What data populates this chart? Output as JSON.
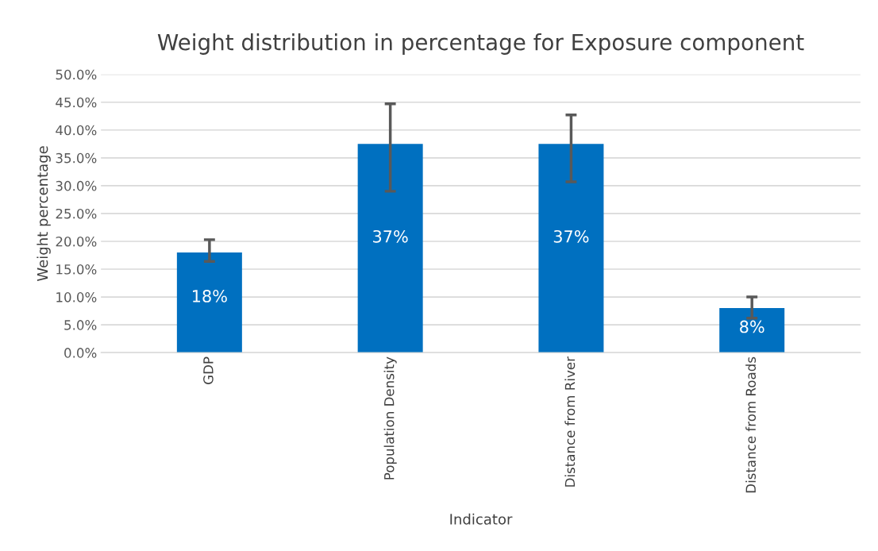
{
  "chart_data": {
    "type": "bar",
    "title": "Weight distribution in percentage for Exposure component",
    "xlabel": "Indicator",
    "ylabel": "Weight percentage",
    "categories": [
      "GDP",
      "Population Density",
      "Distance from River",
      "Distance from Roads"
    ],
    "values": [
      18,
      37.5,
      37.5,
      8
    ],
    "value_labels": [
      "18%",
      "37%",
      "37%",
      "8%"
    ],
    "errors": [
      [
        16.4,
        20.3
      ],
      [
        29.0,
        44.7
      ],
      [
        30.7,
        42.7
      ],
      [
        6.2,
        10.0
      ]
    ],
    "color": "#0070c0",
    "ylim": [
      0,
      50
    ],
    "yticks": [
      {
        "value": 0,
        "label": "0.0%"
      },
      {
        "value": 5,
        "label": "5.0%"
      },
      {
        "value": 10,
        "label": "10.0%"
      },
      {
        "value": 15,
        "label": "15.0%"
      },
      {
        "value": 20,
        "label": "20.0%"
      },
      {
        "value": 25,
        "label": "25.0%"
      },
      {
        "value": 30,
        "label": "30.0%"
      },
      {
        "value": 35,
        "label": "35.0%"
      },
      {
        "value": 40,
        "label": "40.0%"
      },
      {
        "value": 45,
        "label": "45.0%"
      },
      {
        "value": 50,
        "label": "50.0%"
      }
    ],
    "grid": "y",
    "legend": false
  }
}
